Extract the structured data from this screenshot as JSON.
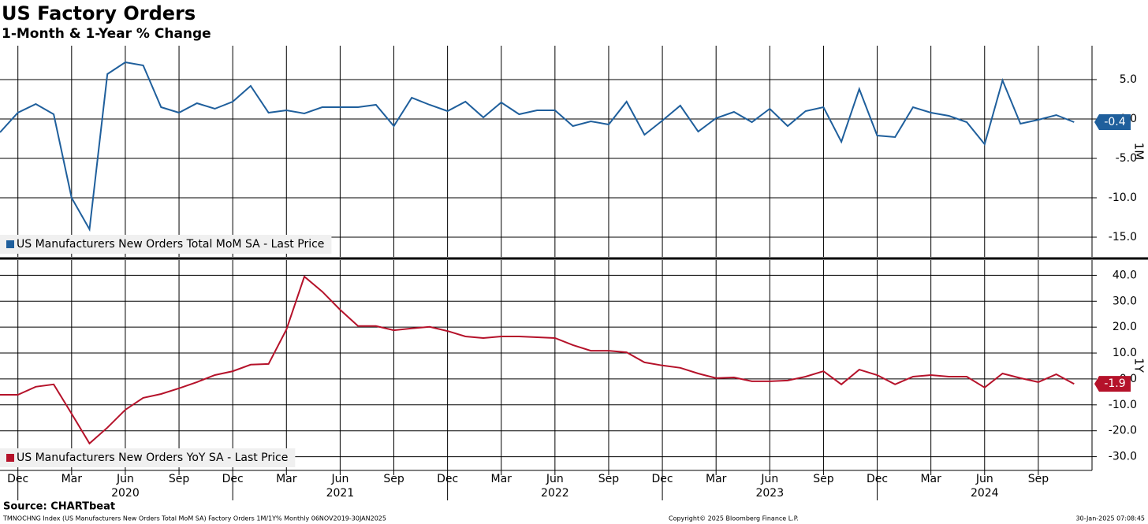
{
  "title": "US Factory Orders",
  "subtitle": "1-Month & 1-Year % Change",
  "source": "Source: CHARTbeat",
  "footer_left": "TMNOCHNG Index (US Manufacturers New Orders Total MoM SA) Factory Orders 1M/1Y%  Monthly 06NOV2019-30JAN2025",
  "footer_mid": "Copyright© 2025 Bloomberg Finance L.P.",
  "footer_right": "30-Jan-2025 07:08:45",
  "chart_data": [
    {
      "type": "line",
      "axis_label": "1M",
      "x": [
        "2019-11",
        "2019-12",
        "2020-01",
        "2020-02",
        "2020-03",
        "2020-04",
        "2020-05",
        "2020-06",
        "2020-07",
        "2020-08",
        "2020-09",
        "2020-10",
        "2020-11",
        "2020-12",
        "2021-01",
        "2021-02",
        "2021-03",
        "2021-04",
        "2021-05",
        "2021-06",
        "2021-07",
        "2021-08",
        "2021-09",
        "2021-10",
        "2021-11",
        "2021-12",
        "2022-01",
        "2022-02",
        "2022-03",
        "2022-04",
        "2022-05",
        "2022-06",
        "2022-07",
        "2022-08",
        "2022-09",
        "2022-10",
        "2022-11",
        "2022-12",
        "2023-01",
        "2023-02",
        "2023-03",
        "2023-04",
        "2023-05",
        "2023-06",
        "2023-07",
        "2023-08",
        "2023-09",
        "2023-10",
        "2023-11",
        "2023-12",
        "2024-01",
        "2024-02",
        "2024-03",
        "2024-04",
        "2024-05",
        "2024-06",
        "2024-07",
        "2024-08",
        "2024-09",
        "2024-10",
        "2024-11"
      ],
      "xlim": [
        "2019-11",
        "2024-12"
      ],
      "series": [
        {
          "name": "US Manufacturers New Orders Total MoM SA - Last Price",
          "color": "#1f5f9c",
          "values": [
            -1.7,
            0.8,
            1.9,
            0.6,
            -10.0,
            -14.0,
            5.7,
            7.2,
            6.8,
            1.5,
            0.8,
            2.0,
            1.3,
            2.2,
            4.2,
            0.8,
            1.1,
            0.7,
            1.5,
            1.5,
            1.5,
            1.8,
            -0.9,
            2.7,
            1.8,
            1.0,
            2.2,
            0.2,
            2.1,
            0.6,
            1.1,
            1.1,
            -0.9,
            -0.3,
            -0.7,
            2.2,
            -2.0,
            -0.2,
            1.7,
            -1.6,
            0.1,
            0.9,
            -0.4,
            1.3,
            -0.9,
            1.0,
            1.5,
            -2.9,
            3.8,
            -2.1,
            -2.3,
            1.5,
            0.8,
            0.4,
            -0.4,
            -3.2,
            4.9,
            -0.6,
            -0.1,
            0.5,
            -0.4
          ],
          "last_value_label": "-0.4"
        }
      ],
      "ylim": [
        -17.5,
        9.3
      ],
      "yticks": [
        {
          "value": 5,
          "label": "5.0"
        },
        {
          "value": 0,
          "label": "0.0"
        },
        {
          "value": -5,
          "label": "-5.0"
        },
        {
          "value": -10,
          "label": "-10.0"
        },
        {
          "value": -15,
          "label": "-15.0"
        }
      ],
      "grid": true
    },
    {
      "type": "line",
      "axis_label": "1Y",
      "x": [
        "2019-11",
        "2019-12",
        "2020-01",
        "2020-02",
        "2020-03",
        "2020-04",
        "2020-05",
        "2020-06",
        "2020-07",
        "2020-08",
        "2020-09",
        "2020-10",
        "2020-11",
        "2020-12",
        "2021-01",
        "2021-02",
        "2021-03",
        "2021-04",
        "2021-05",
        "2021-06",
        "2021-07",
        "2021-08",
        "2021-09",
        "2021-10",
        "2021-11",
        "2021-12",
        "2022-01",
        "2022-02",
        "2022-03",
        "2022-04",
        "2022-05",
        "2022-06",
        "2022-07",
        "2022-08",
        "2022-09",
        "2022-10",
        "2022-11",
        "2022-12",
        "2023-01",
        "2023-02",
        "2023-03",
        "2023-04",
        "2023-05",
        "2023-06",
        "2023-07",
        "2023-08",
        "2023-09",
        "2023-10",
        "2023-11",
        "2023-12",
        "2024-01",
        "2024-02",
        "2024-03",
        "2024-04",
        "2024-05",
        "2024-06",
        "2024-07",
        "2024-08",
        "2024-09",
        "2024-10",
        "2024-11"
      ],
      "xlim": [
        "2019-11",
        "2024-12"
      ],
      "xticks": [
        {
          "value": "2019-12",
          "label": "Dec"
        },
        {
          "value": "2020-03",
          "label": "Mar"
        },
        {
          "value": "2020-06",
          "label": "Jun"
        },
        {
          "value": "2020-09",
          "label": "Sep"
        },
        {
          "value": "2020-12",
          "label": "Dec"
        },
        {
          "value": "2021-03",
          "label": "Mar"
        },
        {
          "value": "2021-06",
          "label": "Jun"
        },
        {
          "value": "2021-09",
          "label": "Sep"
        },
        {
          "value": "2021-12",
          "label": "Dec"
        },
        {
          "value": "2022-03",
          "label": "Mar"
        },
        {
          "value": "2022-06",
          "label": "Jun"
        },
        {
          "value": "2022-09",
          "label": "Sep"
        },
        {
          "value": "2022-12",
          "label": "Dec"
        },
        {
          "value": "2023-03",
          "label": "Mar"
        },
        {
          "value": "2023-06",
          "label": "Jun"
        },
        {
          "value": "2023-09",
          "label": "Sep"
        },
        {
          "value": "2023-12",
          "label": "Dec"
        },
        {
          "value": "2024-03",
          "label": "Mar"
        },
        {
          "value": "2024-06",
          "label": "Jun"
        },
        {
          "value": "2024-09",
          "label": "Sep"
        }
      ],
      "xtick_years": [
        {
          "value": "2020-06",
          "label": "2020"
        },
        {
          "value": "2021-06",
          "label": "2021"
        },
        {
          "value": "2022-06",
          "label": "2022"
        },
        {
          "value": "2023-06",
          "label": "2023"
        },
        {
          "value": "2024-06",
          "label": "2024"
        }
      ],
      "series": [
        {
          "name": "US Manufacturers New Orders YoY SA - Last Price",
          "color": "#b5122a",
          "values": [
            -6.1,
            -6.1,
            -3.0,
            -2.1,
            -13.4,
            -24.9,
            -18.8,
            -11.9,
            -7.3,
            -5.8,
            -3.6,
            -1.2,
            1.5,
            3.0,
            5.5,
            5.8,
            19.1,
            39.5,
            33.7,
            26.7,
            20.4,
            20.4,
            18.8,
            19.5,
            20.1,
            18.5,
            16.4,
            15.8,
            16.4,
            16.4,
            16.1,
            15.8,
            13.1,
            10.9,
            10.9,
            10.3,
            6.4,
            5.2,
            4.3,
            2.1,
            0.3,
            0.6,
            -0.9,
            -0.9,
            -0.6,
            0.9,
            3.0,
            -2.1,
            3.6,
            1.5,
            -2.1,
            0.9,
            1.5,
            0.9,
            0.9,
            -3.3,
            2.1,
            0.3,
            -1.2,
            1.8,
            -1.9
          ],
          "last_value_label": "-1.9"
        }
      ],
      "ylim": [
        -35.3,
        45.9
      ],
      "yticks": [
        {
          "value": 40,
          "label": "40.0"
        },
        {
          "value": 30,
          "label": "30.0"
        },
        {
          "value": 20,
          "label": "20.0"
        },
        {
          "value": 10,
          "label": "10.0"
        },
        {
          "value": 0,
          "label": "0.0"
        },
        {
          "value": -10,
          "label": "-10.0"
        },
        {
          "value": -20,
          "label": "-20.0"
        },
        {
          "value": -30,
          "label": "-30.0"
        }
      ],
      "grid": true
    }
  ]
}
